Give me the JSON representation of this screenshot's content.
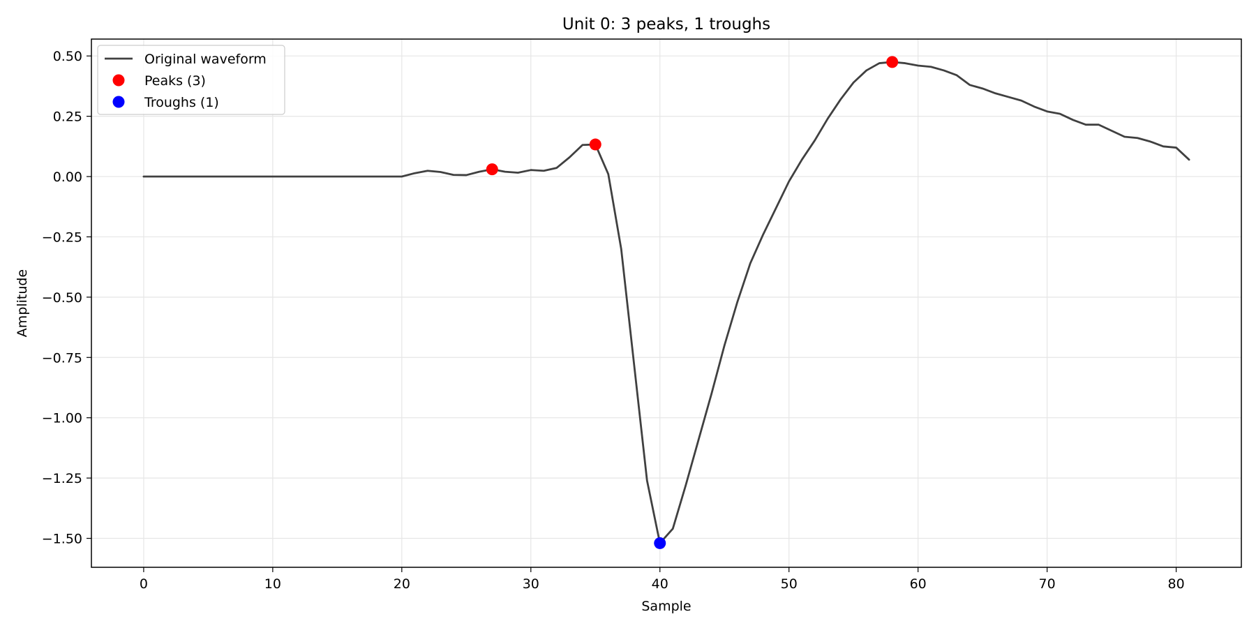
{
  "chart_data": {
    "type": "line",
    "title": "Unit 0: 3 peaks, 1 troughs",
    "xlabel": "Sample",
    "ylabel": "Amplitude",
    "xlim": [
      -4.05,
      85.05
    ],
    "ylim": [
      -1.62,
      0.57
    ],
    "xticks": [
      0,
      10,
      20,
      30,
      40,
      50,
      60,
      70,
      80
    ],
    "yticks": [
      0.5,
      0.25,
      0.0,
      -0.25,
      -0.5,
      -0.75,
      -1.0,
      -1.25,
      -1.5
    ],
    "ytick_labels": [
      "0.50",
      "0.25",
      "0.00",
      "−0.25",
      "−0.50",
      "−0.75",
      "−1.00",
      "−1.25",
      "−1.50"
    ],
    "grid": true,
    "legend_position": "top-left",
    "series": [
      {
        "name": "Original waveform",
        "kind": "line",
        "color": "#404040",
        "x": [
          0,
          1,
          2,
          3,
          4,
          5,
          6,
          7,
          8,
          9,
          10,
          11,
          12,
          13,
          14,
          15,
          16,
          17,
          18,
          19,
          20,
          21,
          22,
          23,
          24,
          25,
          26,
          27,
          28,
          29,
          30,
          31,
          32,
          33,
          34,
          35,
          36,
          37,
          38,
          39,
          40,
          41,
          42,
          43,
          44,
          45,
          46,
          47,
          48,
          49,
          50,
          51,
          52,
          53,
          54,
          55,
          56,
          57,
          58,
          59,
          60,
          61,
          62,
          63,
          64,
          65,
          66,
          67,
          68,
          69,
          70,
          71,
          72,
          73,
          74,
          75,
          76,
          77,
          78,
          79,
          80,
          81
        ],
        "y": [
          0,
          0,
          0,
          0,
          0,
          0,
          0,
          0,
          0,
          0,
          0,
          0,
          0,
          0,
          0,
          0,
          0,
          0,
          0,
          0,
          0,
          0.014,
          0.024,
          0.019,
          0.007,
          0.006,
          0.02,
          0.03,
          0.02,
          0.016,
          0.027,
          0.024,
          0.036,
          0.08,
          0.131,
          0.133,
          0.01,
          -0.3,
          -0.78,
          -1.26,
          -1.52,
          -1.46,
          -1.28,
          -1.09,
          -0.9,
          -0.7,
          -0.52,
          -0.36,
          -0.24,
          -0.13,
          -0.02,
          0.07,
          0.15,
          0.24,
          0.32,
          0.39,
          0.44,
          0.47,
          0.475,
          0.47,
          0.46,
          0.455,
          0.44,
          0.42,
          0.38,
          0.365,
          0.345,
          0.33,
          0.315,
          0.29,
          0.27,
          0.26,
          0.235,
          0.215,
          0.215,
          0.19,
          0.165,
          0.16,
          0.145,
          0.125,
          0.12,
          0.07
        ]
      },
      {
        "name": "Peaks (3)",
        "kind": "markers",
        "color": "#ff0000",
        "x": [
          27,
          35,
          58
        ],
        "y": [
          0.03,
          0.133,
          0.475
        ]
      },
      {
        "name": "Troughs (1)",
        "kind": "markers",
        "color": "#0000ff",
        "x": [
          40
        ],
        "y": [
          -1.52
        ]
      }
    ]
  }
}
